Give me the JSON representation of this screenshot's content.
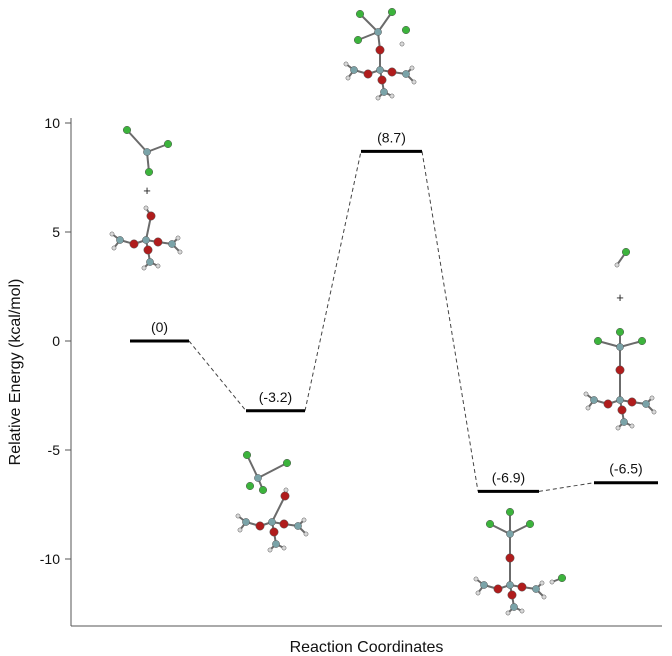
{
  "chart_data": {
    "type": "line",
    "title": "",
    "xlabel": "Reaction Coordinates",
    "ylabel": "Relative Energy (kcal/mol)",
    "ylim": [
      -13,
      10
    ],
    "yticks": [
      10,
      5,
      0,
      -5,
      -10
    ],
    "ytick_labels": [
      "10",
      "5",
      "0",
      "-5",
      "-10"
    ],
    "levels": [
      {
        "x": 1,
        "y": 0,
        "label": "(0)"
      },
      {
        "x": 2,
        "y": -3.2,
        "label": "(-3.2)"
      },
      {
        "x": 3,
        "y": 8.7,
        "label": "(8.7)"
      },
      {
        "x": 4,
        "y": -6.9,
        "label": "(-6.9)"
      },
      {
        "x": 5,
        "y": -6.5,
        "label": "(-6.5)"
      }
    ],
    "connectors": "dashed",
    "plus_signs": [
      "+",
      "+"
    ],
    "colors": {
      "axis": "#555555",
      "level": "#000000",
      "connector": "#444444",
      "oxygen": "#b01c1c",
      "carbon": "#7aa3a8",
      "chlorine": "#3cb33c",
      "hydrogen": "#d8d8d8"
    }
  }
}
